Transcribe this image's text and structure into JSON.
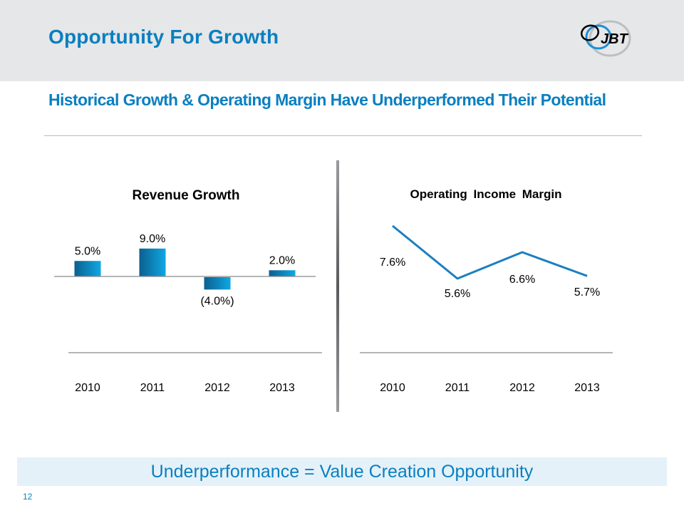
{
  "header": {
    "title": "Opportunity For Growth",
    "logo_text": "JBT",
    "logo_icon": "jbt-swirl-logo"
  },
  "subtitle": "Historical Growth & Operating Margin Have Underperformed Their Potential",
  "callout": "Underperformance = Value Creation Opportunity",
  "page_number": "12",
  "colors": {
    "brand_blue": "#0a7fc0",
    "bar_dark": "#0b5f8e",
    "bar_light": "#0fa8e4",
    "line": "#1b7fc0",
    "header_bg": "#e6e7e9",
    "callout_bg": "#e4f1f9"
  },
  "chart_data": [
    {
      "type": "bar",
      "title": "Revenue Growth",
      "categories": [
        "2010",
        "2011",
        "2012",
        "2013"
      ],
      "values": [
        5.0,
        9.0,
        -4.0,
        2.0
      ],
      "data_labels": [
        "5.0%",
        "9.0%",
        "(4.0%)",
        "2.0%"
      ],
      "xlabel": "",
      "ylabel": "",
      "unit": "%",
      "grid": false,
      "legend": "none"
    },
    {
      "type": "line",
      "title": "Operating Income Margin",
      "categories": [
        "2010",
        "2011",
        "2012",
        "2013"
      ],
      "values": [
        7.6,
        5.6,
        6.6,
        5.7
      ],
      "data_labels": [
        "7.6%",
        "5.6%",
        "6.6%",
        "5.7%"
      ],
      "xlabel": "",
      "ylabel": "",
      "unit": "%",
      "grid": false,
      "legend": "none"
    }
  ]
}
